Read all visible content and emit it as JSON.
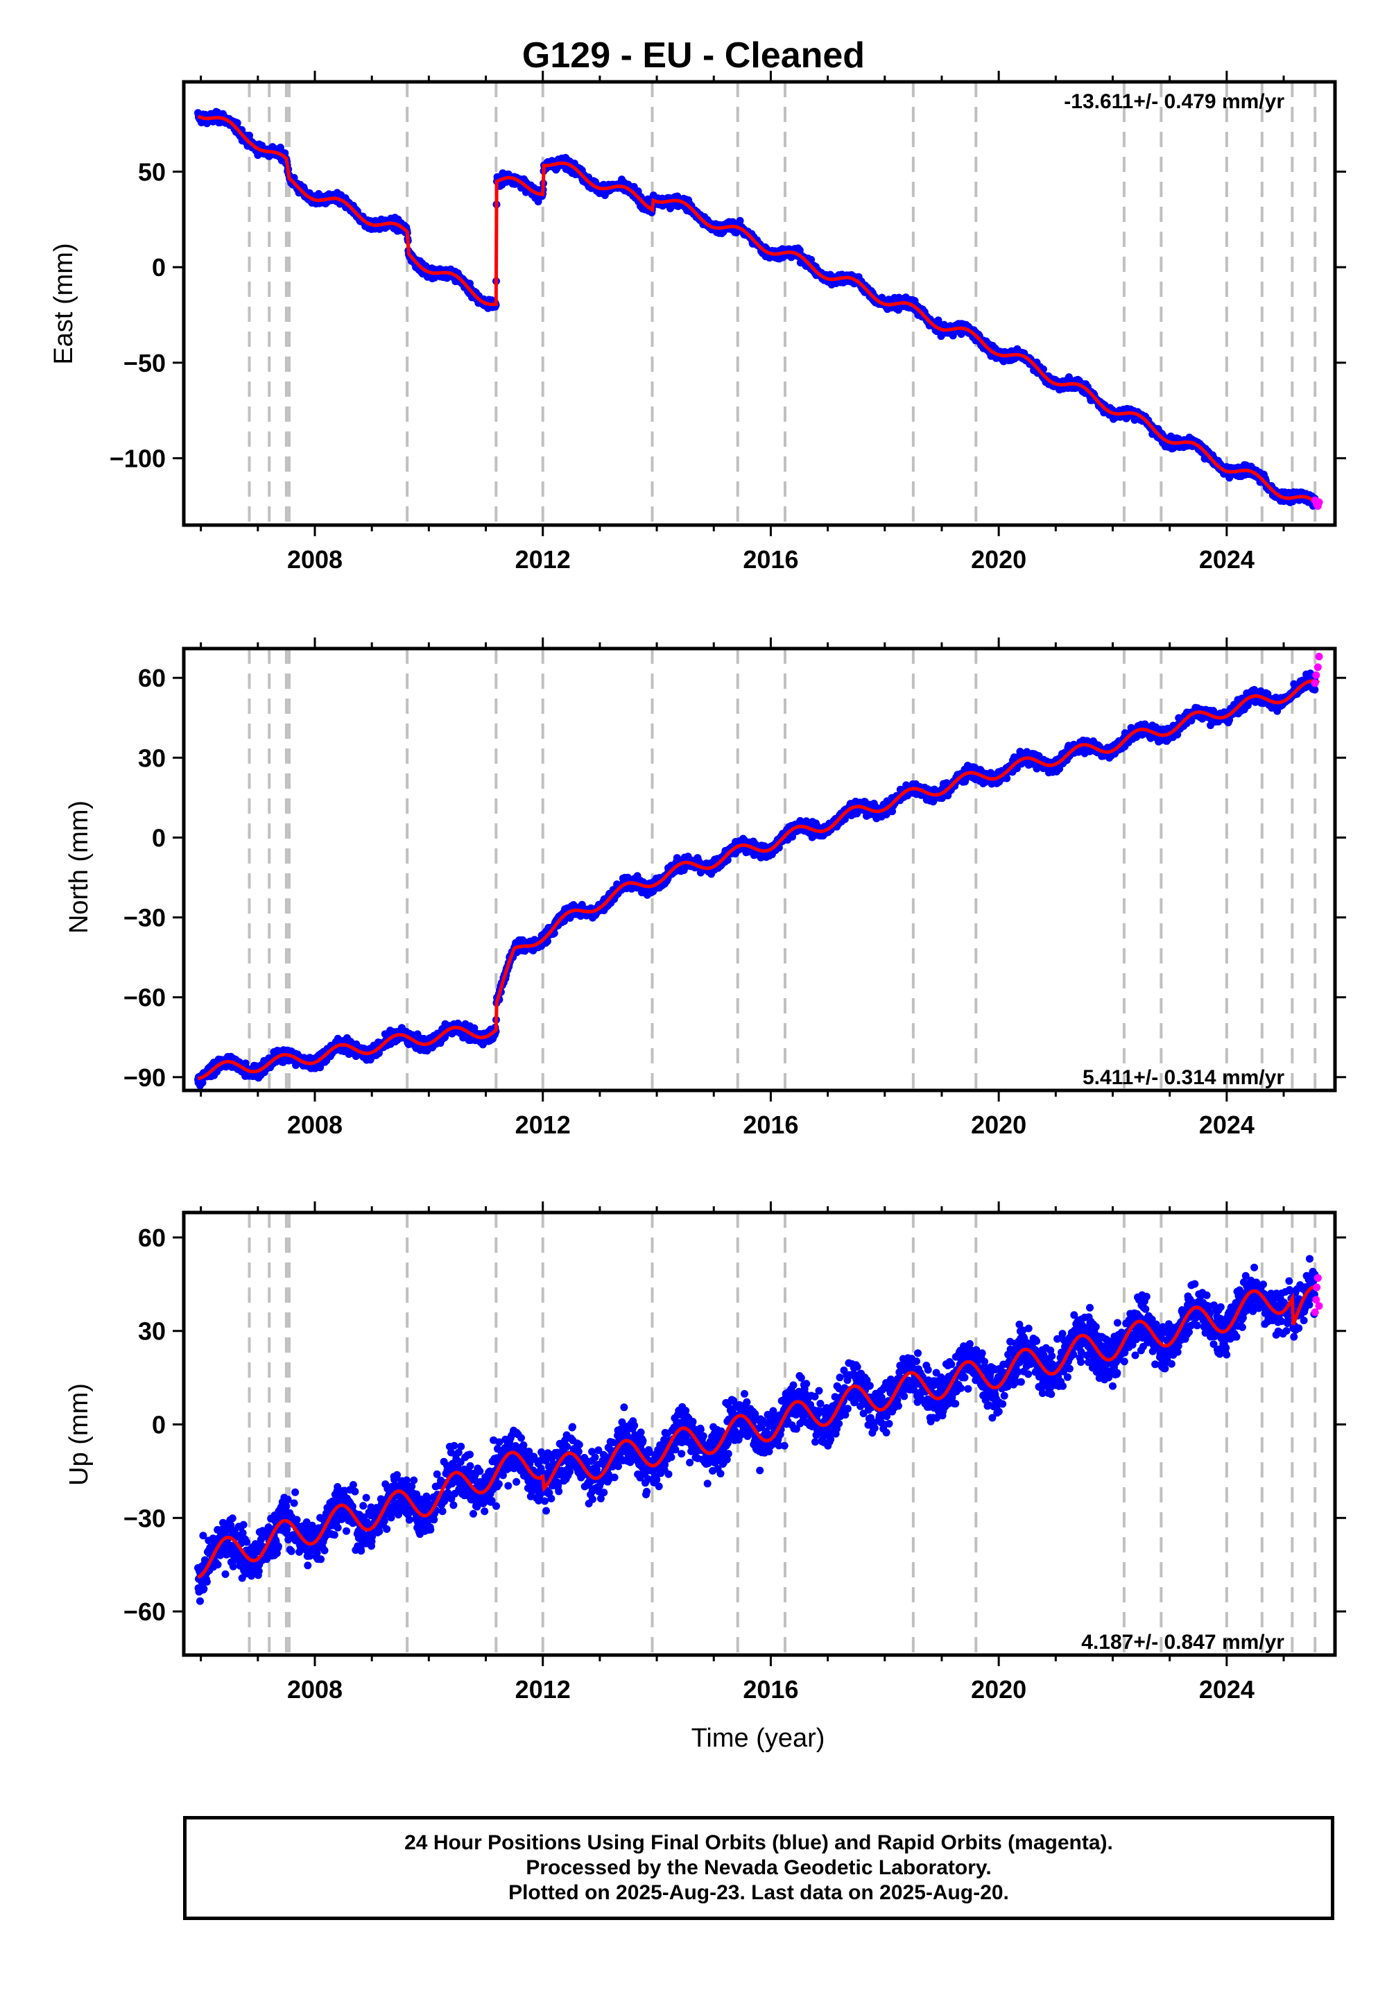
{
  "title": "G129  - EU - Cleaned",
  "footer": {
    "line1": "24 Hour Positions Using Final Orbits (blue) and Rapid Orbits (magenta).",
    "line2": "Processed by the Nevada Geodetic Laboratory.",
    "line3": "Plotted on 2025-Aug-23. Last data on 2025-Aug-20."
  },
  "colors": {
    "final": "#0000ff",
    "rapid": "#ff00ff",
    "model": "#ff0000",
    "events": "#c0c0c0"
  },
  "chart_data": [
    {
      "type": "scatter",
      "ylabel": "East (mm)",
      "xlabel": "",
      "xlim": [
        2005.7,
        2025.9
      ],
      "ylim": [
        -135,
        97
      ],
      "xticks": [
        2008,
        2012,
        2016,
        2020,
        2024
      ],
      "yticks": [
        -100,
        -50,
        0,
        50
      ],
      "rate_label": "-13.611+/- 0.479 mm/yr",
      "rate_position": "top-right",
      "event_lines": [
        2006.85,
        2007.2,
        2007.5,
        2007.55,
        2009.62,
        2011.18,
        2012.0,
        2013.92,
        2015.42,
        2016.25,
        2018.5,
        2019.6,
        2022.2,
        2022.85,
        2024.0,
        2024.62,
        2025.15,
        2025.55
      ],
      "model_curve": [
        [
          2005.95,
          82
        ],
        [
          2006.9,
          67
        ],
        [
          2007.5,
          54
        ],
        [
          2007.55,
          44
        ],
        [
          2009.62,
          17
        ],
        [
          2009.65,
          6
        ],
        [
          2011.18,
          -19
        ],
        [
          2011.19,
          45
        ],
        [
          2012.0,
          41
        ],
        [
          2012.02,
          56
        ],
        [
          2013.92,
          33
        ],
        [
          2013.94,
          38
        ],
        [
          2016,
          10
        ],
        [
          2020,
          -43
        ],
        [
          2024,
          -104
        ],
        [
          2025.6,
          -126
        ]
      ],
      "rapid_points": [
        [
          2025.55,
          -122
        ],
        [
          2025.58,
          -124
        ],
        [
          2025.6,
          -125
        ],
        [
          2025.62,
          -123
        ]
      ],
      "noise_mm": 2.2,
      "seasonal_amp_mm": 3
    },
    {
      "type": "scatter",
      "ylabel": "North (mm)",
      "xlabel": "",
      "xlim": [
        2005.7,
        2025.9
      ],
      "ylim": [
        -95,
        71
      ],
      "xticks": [
        2008,
        2012,
        2016,
        2020,
        2024
      ],
      "yticks": [
        -90,
        -60,
        -30,
        0,
        30,
        60
      ],
      "rate_label": "5.411+/- 0.314 mm/yr",
      "rate_position": "bottom-right",
      "event_lines": [
        2006.85,
        2007.2,
        2007.5,
        2007.55,
        2009.62,
        2011.18,
        2012.0,
        2013.92,
        2015.42,
        2016.25,
        2018.5,
        2019.6,
        2022.2,
        2022.85,
        2024.0,
        2024.62,
        2025.15,
        2025.55
      ],
      "model_curve": [
        [
          2005.95,
          -88
        ],
        [
          2007.5,
          -84
        ],
        [
          2009.62,
          -76
        ],
        [
          2011.18,
          -72
        ],
        [
          2011.19,
          -62
        ],
        [
          2011.5,
          -44
        ],
        [
          2012,
          -36
        ],
        [
          2013,
          -24
        ],
        [
          2014,
          -15
        ],
        [
          2016,
          -2
        ],
        [
          2018,
          13
        ],
        [
          2020,
          25
        ],
        [
          2022,
          35
        ],
        [
          2024,
          48
        ],
        [
          2025.6,
          57
        ]
      ],
      "rapid_points": [
        [
          2025.55,
          58
        ],
        [
          2025.57,
          61
        ],
        [
          2025.6,
          64
        ],
        [
          2025.62,
          68
        ]
      ],
      "noise_mm": 2,
      "seasonal_amp_mm": 2.5
    },
    {
      "type": "scatter",
      "ylabel": "Up (mm)",
      "xlabel": "Time (year)",
      "xlim": [
        2005.7,
        2025.9
      ],
      "ylim": [
        -74,
        68
      ],
      "xticks": [
        2008,
        2012,
        2016,
        2020,
        2024
      ],
      "yticks": [
        -60,
        -30,
        0,
        30,
        60
      ],
      "rate_label": "4.187+/- 0.847 mm/yr",
      "rate_position": "bottom-right",
      "event_lines": [
        2006.85,
        2007.2,
        2007.5,
        2007.55,
        2009.62,
        2011.18,
        2012.0,
        2013.92,
        2015.42,
        2016.25,
        2018.5,
        2019.6,
        2022.2,
        2022.85,
        2024.0,
        2024.62,
        2025.15,
        2025.55
      ],
      "model_curve": [
        [
          2005.95,
          -44
        ],
        [
          2008,
          -33
        ],
        [
          2010,
          -24
        ],
        [
          2011.18,
          -15
        ],
        [
          2012,
          -12
        ],
        [
          2012.02,
          -16
        ],
        [
          2014,
          -8
        ],
        [
          2016,
          0
        ],
        [
          2018,
          10
        ],
        [
          2020,
          17
        ],
        [
          2022,
          26
        ],
        [
          2024,
          35
        ],
        [
          2025.15,
          42
        ],
        [
          2025.17,
          33
        ],
        [
          2025.6,
          41
        ]
      ],
      "rapid_points": [
        [
          2025.55,
          36
        ],
        [
          2025.57,
          40
        ],
        [
          2025.58,
          44
        ],
        [
          2025.6,
          47
        ],
        [
          2025.62,
          38
        ]
      ],
      "noise_mm": 6.5,
      "seasonal_amp_mm": 5
    }
  ]
}
